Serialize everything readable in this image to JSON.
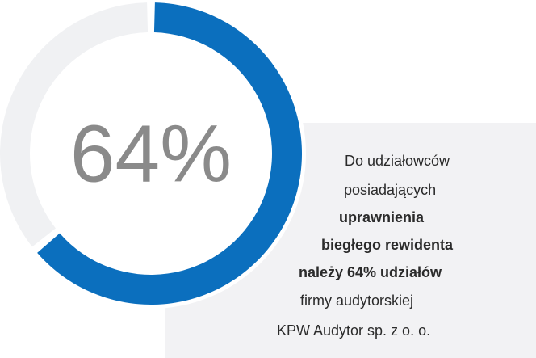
{
  "chart_data": {
    "type": "donut",
    "values": [
      64
    ],
    "value_labels": [
      "64%"
    ],
    "color": "#0b6fbe",
    "track_color": "#f0f1f3",
    "ylim": [
      0,
      100
    ],
    "annotation": [
      {
        "text": "Do udziałowców",
        "bold": false
      },
      {
        "text": "posiadających",
        "bold": false
      },
      {
        "text": "uprawnienia",
        "bold": true
      },
      {
        "text": "biegłego rewidenta",
        "bold": true
      },
      {
        "text": "należy 64% udziałów",
        "bold": true
      },
      {
        "text": "firmy audytorskiej",
        "bold": false
      },
      {
        "text": "KPW Audytor sp. z o. o.",
        "bold": false
      }
    ]
  }
}
